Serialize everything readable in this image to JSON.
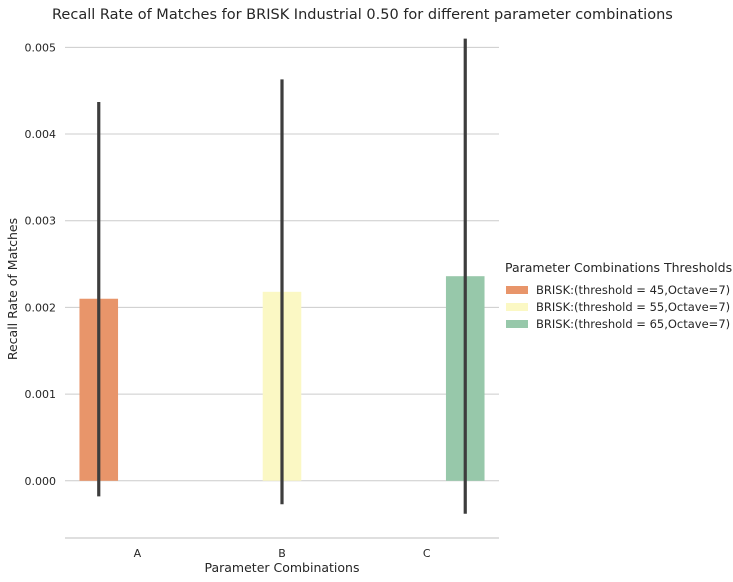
{
  "chart_data": {
    "type": "bar",
    "title": "Recall Rate of Matches for BRISK Industrial 0.50 for different parameter combinations",
    "xlabel": "Parameter Combinations",
    "ylabel": "Recall Rate of Matches",
    "categories": [
      "A",
      "B",
      "C"
    ],
    "ylim": [
      -0.00066,
      0.0052
    ],
    "yticks": [
      0.0,
      0.001,
      0.002,
      0.003,
      0.004,
      0.005
    ],
    "ytick_labels": [
      "0.000",
      "0.001",
      "0.002",
      "0.003",
      "0.004",
      "0.005"
    ],
    "grid": "y",
    "legend": {
      "title": "Parameter Combinations Thresholds",
      "placement": "right"
    },
    "series": [
      {
        "name": "BRISK:(threshold = 45,Octave=7)",
        "color": "#e8956a",
        "values": [
          0.0021,
          null,
          null
        ],
        "error_low": [
          -0.00018,
          null,
          null
        ],
        "error_high": [
          0.00437,
          null,
          null
        ]
      },
      {
        "name": "BRISK:(threshold = 55,Octave=7)",
        "color": "#fbf8c4",
        "values": [
          null,
          0.00218,
          null
        ],
        "error_low": [
          null,
          -0.00027,
          null
        ],
        "error_high": [
          null,
          0.00463,
          null
        ]
      },
      {
        "name": "BRISK:(threshold = 65,Octave=7)",
        "color": "#97c8aa",
        "values": [
          null,
          null,
          0.00236
        ],
        "error_low": [
          null,
          null,
          -0.00038
        ],
        "error_high": [
          null,
          null,
          0.0051
        ]
      }
    ]
  }
}
